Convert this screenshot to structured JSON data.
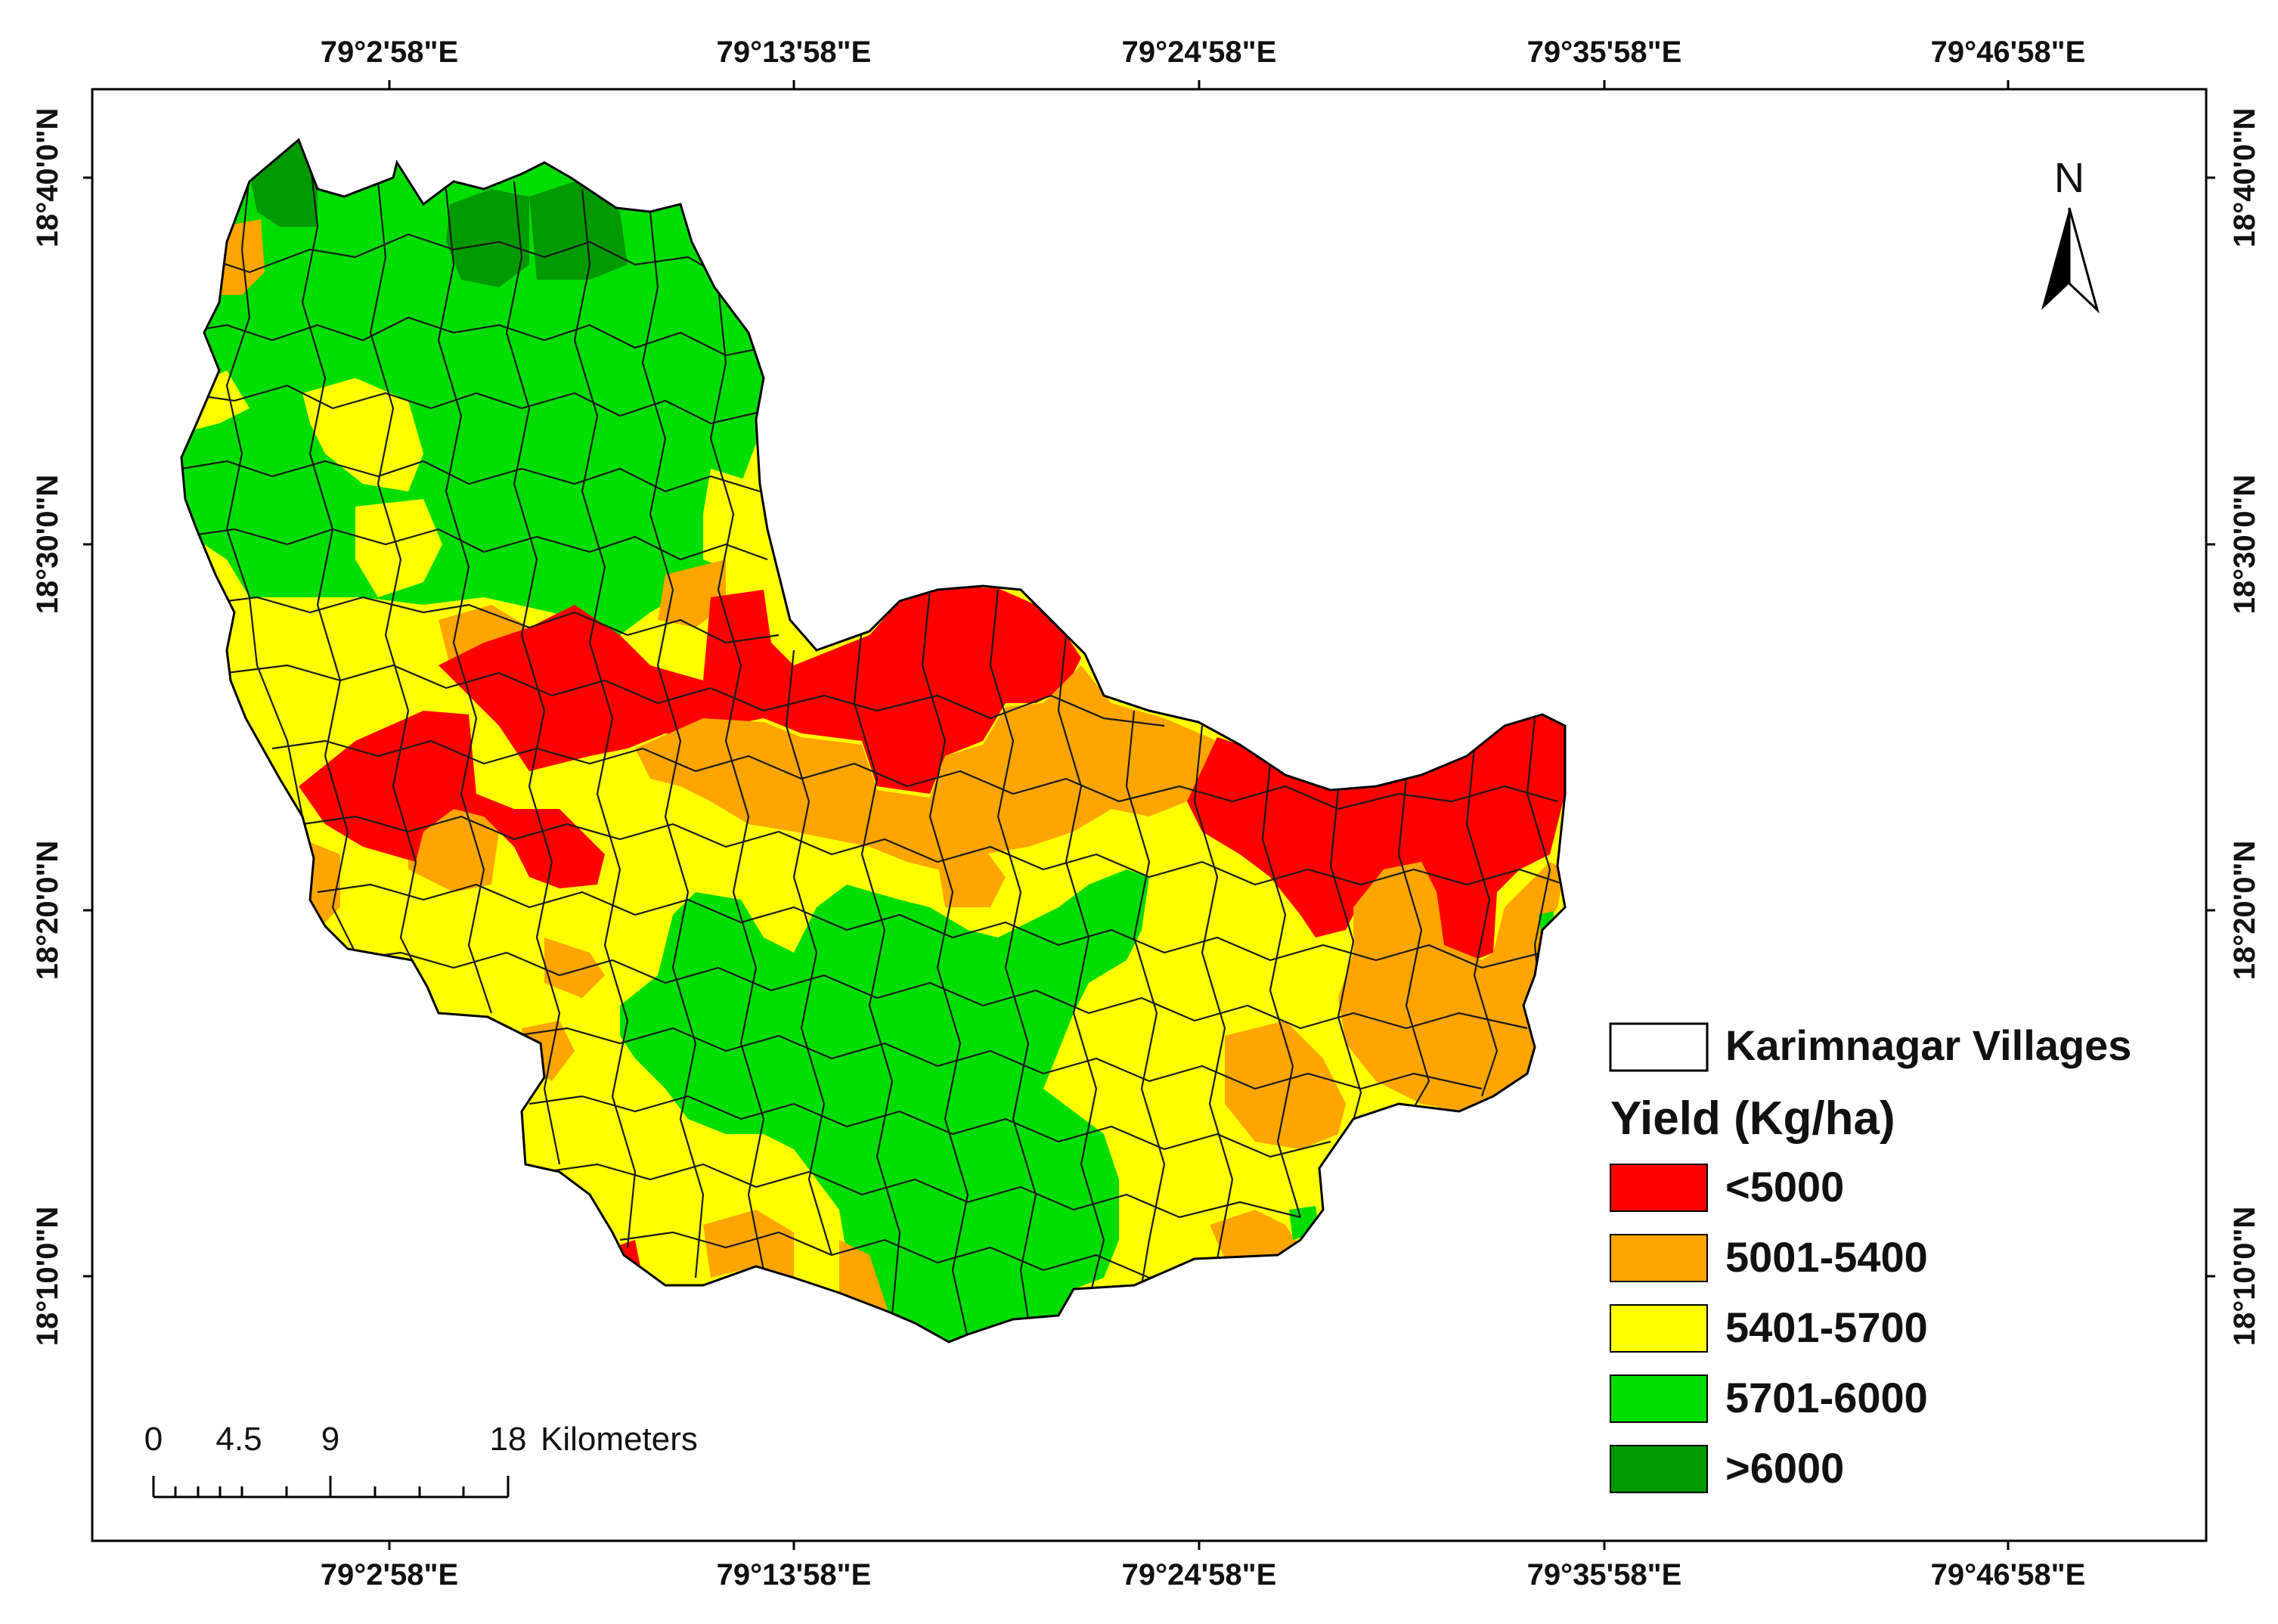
{
  "axes": {
    "longitude_labels": [
      "79°2'58\"E",
      "79°13'58\"E",
      "79°24'58\"E",
      "79°35'58\"E",
      "79°46'58\"E"
    ],
    "latitude_labels": [
      "18°40'0\"N",
      "18°30'0\"N",
      "18°20'0\"N",
      "18°10'0\"N"
    ]
  },
  "north_arrow": {
    "label": "N",
    "icon": "north-arrow-icon"
  },
  "scale_bar": {
    "tick_labels": [
      "0",
      "4.5",
      "9",
      "18"
    ],
    "unit": "Kilometers"
  },
  "legend": {
    "boundary_label": "Karimnagar Villages",
    "title": "Yield (Kg/ha)",
    "classes": [
      {
        "label": "<5000",
        "color": "#ff0000"
      },
      {
        "label": "5001-5400",
        "color": "#ffa500"
      },
      {
        "label": "5401-5700",
        "color": "#ffff00"
      },
      {
        "label": "5701-6000",
        "color": "#00dd00"
      },
      {
        "label": ">6000",
        "color": "#009900"
      }
    ]
  },
  "colors": {
    "red": "#ff0000",
    "orange": "#ffa500",
    "yellow": "#ffff00",
    "green": "#00dd00",
    "dark_green": "#009900"
  }
}
